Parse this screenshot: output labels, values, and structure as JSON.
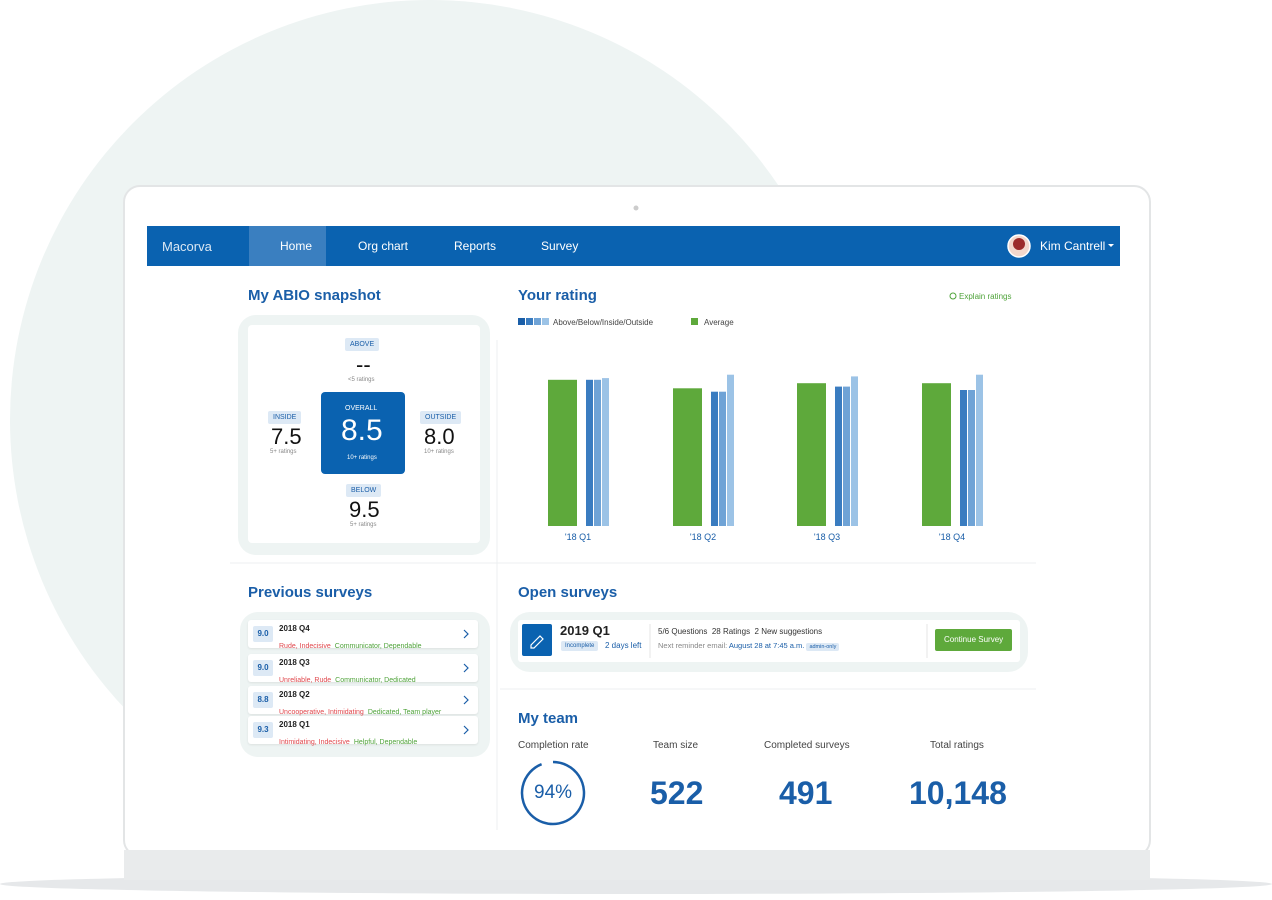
{
  "nav": {
    "brand": "Macorva",
    "items": [
      "Home",
      "Org chart",
      "Reports",
      "Survey"
    ],
    "user": "Kim Cantrell"
  },
  "snapshot": {
    "title": "My ABIO snapshot",
    "above": {
      "label": "ABOVE",
      "value": "--",
      "note": "<5 ratings"
    },
    "inside": {
      "label": "INSIDE",
      "value": "7.5",
      "note": "5+ ratings"
    },
    "overall": {
      "label": "OVERALL",
      "value": "8.5",
      "note": "10+ ratings"
    },
    "outside": {
      "label": "OUTSIDE",
      "value": "8.0",
      "note": "10+ ratings"
    },
    "below": {
      "label": "BELOW",
      "value": "9.5",
      "note": "5+ ratings"
    }
  },
  "chart_data": {
    "type": "bar",
    "title": "Your rating",
    "explain": "Explain ratings",
    "categories": [
      "'18 Q1",
      "'18 Q2",
      "'18 Q3",
      "'18 Q4"
    ],
    "series": [
      {
        "name": "Above/Below/Inside/Outside",
        "colors": [
          "#1a5ea8",
          "#3a7cc0",
          "#6fa3d6",
          "#9cc3e6"
        ],
        "values": [
          [
            8.6,
            8.6,
            8.7
          ],
          [
            7.9,
            7.9,
            8.9
          ],
          [
            8.2,
            8.2,
            8.8
          ],
          [
            8.0,
            8.0,
            8.9
          ]
        ]
      },
      {
        "name": "Average",
        "color": "#5ea93b",
        "values": [
          8.6,
          8.1,
          8.4,
          8.4
        ]
      }
    ],
    "ylim": [
      0,
      10
    ]
  },
  "previous": {
    "title": "Previous surveys",
    "items": [
      {
        "score": "9.0",
        "period": "2018 Q4",
        "negative": "Rude, Indecisive",
        "positive": "Communicator, Dependable"
      },
      {
        "score": "9.0",
        "period": "2018 Q3",
        "negative": "Unreliable, Rude",
        "positive": "Communicator, Dedicated"
      },
      {
        "score": "8.8",
        "period": "2018 Q2",
        "negative": "Uncooperative, Intimidating",
        "positive": "Dedicated, Team player"
      },
      {
        "score": "9.3",
        "period": "2018 Q1",
        "negative": "Intimidating, Indecisive",
        "positive": "Helpful, Dependable"
      }
    ]
  },
  "open": {
    "title": "Open surveys",
    "survey": {
      "period": "2019 Q1",
      "status": "Incomplete",
      "due": "2 days left",
      "stats": [
        "5/6 Questions",
        "28 Ratings",
        "2 New suggestions"
      ],
      "reminder_label": "Next reminder email:",
      "reminder": "August 28 at 7:45 a.m.",
      "tag": "admin-only",
      "button": "Continue Survey"
    }
  },
  "team": {
    "title": "My team",
    "completion": {
      "label": "Completion rate",
      "value": 94,
      "value_label": "94%"
    },
    "stats": [
      {
        "label": "Team size",
        "value": "522"
      },
      {
        "label": "Completed surveys",
        "value": "491"
      },
      {
        "label": "Total ratings",
        "value": "10,148"
      }
    ]
  }
}
